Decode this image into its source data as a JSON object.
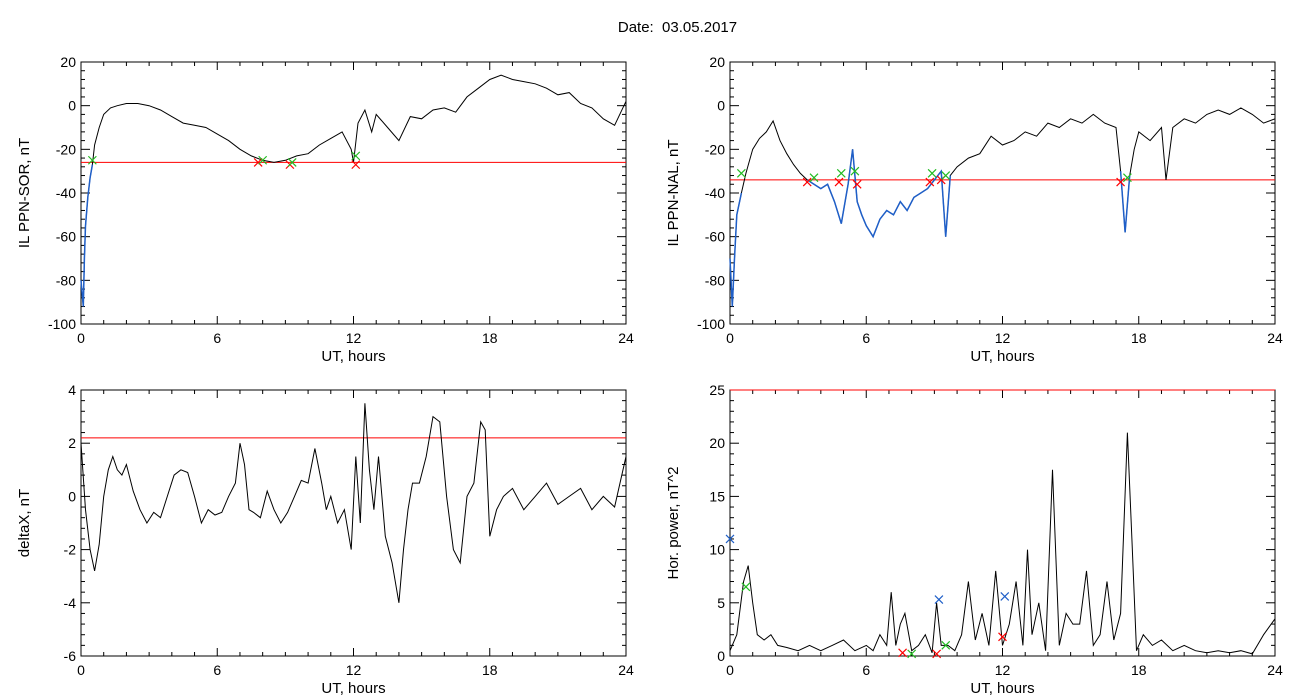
{
  "figure": {
    "title": "Date:  03.05.2017"
  },
  "chart_data": [
    {
      "type": "line",
      "xlabel": "UT, hours",
      "ylabel": "IL PPN-SOR, nT",
      "xlim": [
        0,
        24
      ],
      "ylim": [
        -100,
        20
      ],
      "xticks": [
        "0",
        "6",
        "12",
        "18",
        "24"
      ],
      "yticks": [
        "-100",
        "-80",
        "-60",
        "-40",
        "-20",
        "0",
        "20"
      ],
      "threshold": -26,
      "colors": {
        "line": "#000000",
        "highlight": "#1f5fc8",
        "threshold": "#ff0000",
        "mark_red": "#ff0000",
        "mark_green": "#22bb22"
      },
      "series": [
        {
          "x": [
            0,
            0.1,
            0.15,
            0.2,
            0.3,
            0.4,
            0.5,
            0.6,
            0.8,
            1,
            1.3,
            1.6,
            2,
            2.5,
            3,
            3.5,
            4,
            4.5,
            5,
            5.5,
            6,
            6.5,
            7,
            7.5,
            8,
            8.5,
            9,
            9.5,
            10,
            10.5,
            11,
            11.5,
            11.9,
            12,
            12.2,
            12.5,
            12.8,
            13,
            13.5,
            14,
            14.5,
            15,
            15.5,
            16,
            16.5,
            17,
            17.5,
            18,
            18.5,
            19,
            19.5,
            20,
            20.5,
            21,
            21.5,
            22,
            22.5,
            23,
            23.5,
            24
          ],
          "values": [
            -80,
            -92,
            -70,
            -55,
            -42,
            -33,
            -27,
            -18,
            -10,
            -4,
            -1,
            0,
            1,
            1,
            0,
            -2,
            -5,
            -8,
            -9,
            -10,
            -13,
            -16,
            -20,
            -23,
            -25,
            -26,
            -25,
            -23,
            -22,
            -18,
            -15,
            -12,
            -20,
            -26,
            -8,
            -2,
            -12,
            -4,
            -10,
            -16,
            -5,
            -6,
            -2,
            -1,
            -3,
            4,
            8,
            12,
            14,
            12,
            11,
            10,
            8,
            5,
            6,
            1,
            -1,
            -6,
            -9,
            2
          ]
        }
      ],
      "highlights": [
        {
          "x": [
            0,
            0.1,
            0.15,
            0.2,
            0.3,
            0.4,
            0.5
          ],
          "values": [
            -80,
            -92,
            -70,
            -55,
            -42,
            -33,
            -27
          ]
        }
      ],
      "markers": [
        {
          "x": 0.5,
          "y": -25,
          "color": "green"
        },
        {
          "x": 7.8,
          "y": -26,
          "color": "red"
        },
        {
          "x": 8.0,
          "y": -25,
          "color": "green"
        },
        {
          "x": 9.2,
          "y": -27,
          "color": "red"
        },
        {
          "x": 9.3,
          "y": -26,
          "color": "green"
        },
        {
          "x": 12.1,
          "y": -27,
          "color": "red"
        },
        {
          "x": 12.1,
          "y": -23,
          "color": "green"
        }
      ]
    },
    {
      "type": "line",
      "xlabel": "UT, hours",
      "ylabel": "IL PPN-NAL, nT",
      "xlim": [
        0,
        24
      ],
      "ylim": [
        -100,
        20
      ],
      "xticks": [
        "0",
        "6",
        "12",
        "18",
        "24"
      ],
      "yticks": [
        "-100",
        "-80",
        "-60",
        "-40",
        "-20",
        "0",
        "20"
      ],
      "threshold": -34,
      "colors": {
        "line": "#000000",
        "highlight": "#1f5fc8",
        "threshold": "#ff0000",
        "mark_red": "#ff0000",
        "mark_green": "#22bb22"
      },
      "series": [
        {
          "x": [
            0,
            0.1,
            0.2,
            0.3,
            0.5,
            0.7,
            1,
            1.3,
            1.6,
            1.9,
            2.2,
            2.5,
            2.8,
            3.1,
            3.4,
            3.7,
            4,
            4.3,
            4.6,
            4.9,
            5.2,
            5.4,
            5.6,
            5.8,
            6,
            6.3,
            6.6,
            6.9,
            7.2,
            7.5,
            7.8,
            8.1,
            8.4,
            8.7,
            9,
            9.3,
            9.5,
            9.7,
            10,
            10.5,
            11,
            11.5,
            12,
            12.5,
            13,
            13.5,
            14,
            14.5,
            15,
            15.5,
            16,
            16.5,
            17,
            17.2,
            17.4,
            17.6,
            17.8,
            18,
            18.5,
            19,
            19.2,
            19.5,
            20,
            20.5,
            21,
            21.5,
            22,
            22.5,
            23,
            23.5,
            24
          ],
          "values": [
            -70,
            -92,
            -70,
            -50,
            -40,
            -31,
            -20,
            -15,
            -12,
            -7,
            -16,
            -22,
            -27,
            -31,
            -34,
            -36,
            -38,
            -36,
            -44,
            -54,
            -36,
            -20,
            -44,
            -50,
            -55,
            -60,
            -52,
            -48,
            -50,
            -44,
            -48,
            -42,
            -40,
            -38,
            -34,
            -30,
            -60,
            -32,
            -28,
            -24,
            -22,
            -14,
            -18,
            -16,
            -12,
            -14,
            -8,
            -10,
            -6,
            -8,
            -4,
            -8,
            -10,
            -30,
            -58,
            -32,
            -20,
            -12,
            -16,
            -10,
            -34,
            -10,
            -6,
            -8,
            -4,
            -2,
            -4,
            -1,
            -4,
            -8,
            -6
          ]
        }
      ],
      "highlights": [
        {
          "x": [
            0,
            0.1,
            0.2,
            0.3,
            0.5
          ],
          "values": [
            -70,
            -92,
            -70,
            -50,
            -40
          ]
        },
        {
          "x": [
            3.4,
            3.7,
            4,
            4.3,
            4.6,
            4.9,
            5.2,
            5.4,
            5.6,
            5.8,
            6,
            6.3,
            6.6,
            6.9,
            7.2,
            7.5,
            7.8,
            8.1,
            8.4,
            8.7,
            9,
            9.3,
            9.5,
            9.7
          ],
          "values": [
            -34,
            -36,
            -38,
            -36,
            -44,
            -54,
            -36,
            -20,
            -44,
            -50,
            -55,
            -60,
            -52,
            -48,
            -50,
            -44,
            -48,
            -42,
            -40,
            -38,
            -34,
            -30,
            -60,
            -32
          ]
        },
        {
          "x": [
            17.2,
            17.4,
            17.6
          ],
          "values": [
            -30,
            -58,
            -32
          ]
        }
      ],
      "markers": [
        {
          "x": 0.5,
          "y": -31,
          "color": "green"
        },
        {
          "x": 3.4,
          "y": -35,
          "color": "red"
        },
        {
          "x": 3.7,
          "y": -33,
          "color": "green"
        },
        {
          "x": 4.8,
          "y": -35,
          "color": "red"
        },
        {
          "x": 4.9,
          "y": -31,
          "color": "green"
        },
        {
          "x": 5.6,
          "y": -36,
          "color": "red"
        },
        {
          "x": 5.5,
          "y": -30,
          "color": "green"
        },
        {
          "x": 8.8,
          "y": -35,
          "color": "red"
        },
        {
          "x": 8.9,
          "y": -31,
          "color": "green"
        },
        {
          "x": 9.3,
          "y": -34,
          "color": "red"
        },
        {
          "x": 9.5,
          "y": -32,
          "color": "green"
        },
        {
          "x": 17.2,
          "y": -35,
          "color": "red"
        },
        {
          "x": 17.5,
          "y": -33,
          "color": "green"
        }
      ]
    },
    {
      "type": "line",
      "xlabel": "UT, hours",
      "ylabel": "deltaX, nT",
      "xlim": [
        0,
        24
      ],
      "ylim": [
        -6,
        4
      ],
      "xticks": [
        "0",
        "6",
        "12",
        "18",
        "24"
      ],
      "yticks": [
        "-6",
        "-4",
        "-2",
        "0",
        "2",
        "4"
      ],
      "threshold": 2.2,
      "colors": {
        "line": "#000000",
        "threshold": "#ff0000"
      },
      "series": [
        {
          "x": [
            0,
            0.2,
            0.4,
            0.6,
            0.8,
            1,
            1.2,
            1.4,
            1.6,
            1.8,
            2,
            2.3,
            2.6,
            2.9,
            3.2,
            3.5,
            3.8,
            4.1,
            4.4,
            4.7,
            5,
            5.3,
            5.6,
            5.9,
            6.2,
            6.5,
            6.8,
            7,
            7.2,
            7.4,
            7.6,
            7.9,
            8.2,
            8.5,
            8.8,
            9.1,
            9.4,
            9.7,
            10,
            10.3,
            10.6,
            10.8,
            11,
            11.3,
            11.6,
            11.9,
            12.1,
            12.3,
            12.5,
            12.7,
            12.9,
            13.1,
            13.4,
            13.7,
            14,
            14.2,
            14.4,
            14.6,
            14.9,
            15.2,
            15.5,
            15.8,
            16.1,
            16.4,
            16.7,
            17,
            17.3,
            17.6,
            17.8,
            18,
            18.3,
            18.6,
            19,
            19.5,
            20,
            20.5,
            21,
            21.5,
            22,
            22.5,
            23,
            23.5,
            24
          ],
          "values": [
            2,
            -0.5,
            -2,
            -2.8,
            -1.8,
            0,
            1,
            1.5,
            1,
            0.8,
            1.2,
            0.2,
            -0.5,
            -1,
            -0.6,
            -0.8,
            0,
            0.8,
            1,
            0.9,
            0,
            -1,
            -0.5,
            -0.7,
            -0.6,
            0,
            0.5,
            2,
            1.2,
            -0.5,
            -0.6,
            -0.8,
            0.2,
            -0.5,
            -1,
            -0.6,
            0,
            0.6,
            0.5,
            1.8,
            0.5,
            -0.5,
            0,
            -1,
            -0.5,
            -2,
            1.5,
            -1,
            3.5,
            1,
            -0.5,
            1.5,
            -1.5,
            -2.5,
            -4,
            -2,
            -0.5,
            0.5,
            0.5,
            1.5,
            3,
            2.8,
            0,
            -2,
            -2.5,
            0,
            0.5,
            2.8,
            2.5,
            -1.5,
            -0.5,
            0,
            0.3,
            -0.5,
            0,
            0.5,
            -0.3,
            0,
            0.3,
            -0.5,
            0,
            -0.4,
            1.5
          ]
        }
      ]
    },
    {
      "type": "line",
      "xlabel": "UT, hours",
      "ylabel": "Hor. power, nT^2",
      "xlim": [
        0,
        24
      ],
      "ylim": [
        0,
        25
      ],
      "xticks": [
        "0",
        "6",
        "12",
        "18",
        "24"
      ],
      "yticks": [
        "0",
        "5",
        "10",
        "15",
        "20",
        "25"
      ],
      "threshold": 25,
      "colors": {
        "line": "#000000",
        "threshold": "#ff0000",
        "mark_red": "#ff0000",
        "mark_green": "#22bb22",
        "mark_blue": "#1f5fc8"
      },
      "series": [
        {
          "x": [
            0,
            0.3,
            0.6,
            0.8,
            1,
            1.2,
            1.5,
            1.8,
            2.1,
            2.5,
            3,
            3.5,
            4,
            4.5,
            5,
            5.5,
            6,
            6.3,
            6.6,
            6.9,
            7.1,
            7.3,
            7.5,
            7.7,
            8,
            8.3,
            8.6,
            8.9,
            9.1,
            9.3,
            9.6,
            9.9,
            10.2,
            10.5,
            10.8,
            11.1,
            11.4,
            11.7,
            12,
            12.3,
            12.6,
            12.9,
            13.1,
            13.3,
            13.6,
            13.9,
            14.2,
            14.5,
            14.8,
            15.1,
            15.4,
            15.7,
            16,
            16.3,
            16.6,
            16.9,
            17.2,
            17.5,
            17.7,
            17.9,
            18.2,
            18.6,
            19,
            19.5,
            20,
            20.5,
            21,
            21.5,
            22,
            22.5,
            23,
            23.5,
            24
          ],
          "values": [
            0.5,
            2,
            7,
            8.5,
            5,
            2,
            1.5,
            2,
            1,
            0.8,
            0.5,
            1,
            0.5,
            1,
            1.5,
            0.5,
            1,
            0.5,
            2,
            1,
            6,
            1,
            3,
            4,
            0.5,
            1,
            2,
            0.3,
            5,
            1,
            1,
            0.5,
            2,
            7,
            1.5,
            4,
            1,
            8,
            1,
            3,
            7,
            1,
            10,
            2,
            5,
            0.5,
            17.5,
            1,
            4,
            3,
            3,
            8,
            1,
            2,
            7,
            1.5,
            4,
            21,
            11,
            0.5,
            2,
            1,
            1.5,
            0.5,
            1,
            0.5,
            0.3,
            0.5,
            0.3,
            0.5,
            0.2,
            2,
            3.5
          ]
        }
      ],
      "markers": [
        {
          "x": 0,
          "y": 11,
          "color": "blue"
        },
        {
          "x": 0.7,
          "y": 6.5,
          "color": "green"
        },
        {
          "x": 7.6,
          "y": 0.3,
          "color": "red"
        },
        {
          "x": 8.0,
          "y": 0.2,
          "color": "green"
        },
        {
          "x": 9.1,
          "y": 0.2,
          "color": "red"
        },
        {
          "x": 9.2,
          "y": 5.3,
          "color": "blue"
        },
        {
          "x": 9.5,
          "y": 1.0,
          "color": "green"
        },
        {
          "x": 12.0,
          "y": 1.8,
          "color": "red"
        },
        {
          "x": 12.1,
          "y": 5.6,
          "color": "blue"
        }
      ]
    }
  ]
}
